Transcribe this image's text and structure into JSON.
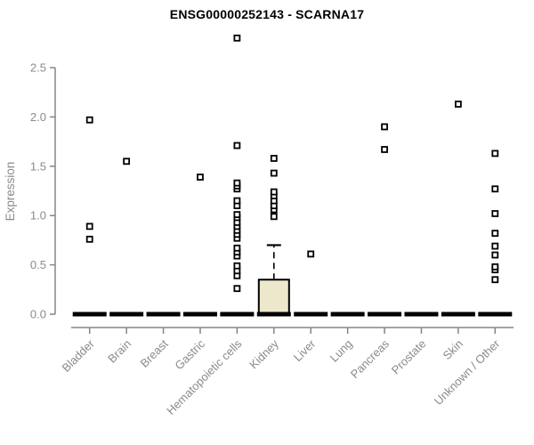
{
  "title": "ENSG00000252143 - SCARNA17",
  "chart_data": {
    "type": "boxplot",
    "title": "ENSG00000252143 - SCARNA17",
    "xlabel": "",
    "ylabel": "Expression",
    "ylim": [
      0,
      2.5
    ],
    "yticks": [
      0.0,
      0.5,
      1.0,
      1.5,
      2.0,
      2.5
    ],
    "grid": false,
    "legend": "none",
    "categories": [
      "Bladder",
      "Brain",
      "Breast",
      "Gastric",
      "Hematopoietic cells",
      "Kidney",
      "Liver",
      "Lung",
      "Pancreas",
      "Prostate",
      "Skin",
      "Unknown / Other"
    ],
    "boxes": [
      {
        "category": "Bladder",
        "median": 0,
        "q1": 0,
        "q3": 0,
        "whisker_low": 0,
        "whisker_high": 0,
        "outliers": [
          0.76,
          0.89,
          1.97
        ]
      },
      {
        "category": "Brain",
        "median": 0,
        "q1": 0,
        "q3": 0,
        "whisker_low": 0,
        "whisker_high": 0,
        "outliers": [
          1.55
        ]
      },
      {
        "category": "Breast",
        "median": 0,
        "q1": 0,
        "q3": 0,
        "whisker_low": 0,
        "whisker_high": 0,
        "outliers": []
      },
      {
        "category": "Gastric",
        "median": 0,
        "q1": 0,
        "q3": 0,
        "whisker_low": 0,
        "whisker_high": 0,
        "outliers": [
          1.39
        ]
      },
      {
        "category": "Hematopoietic cells",
        "median": 0,
        "q1": 0,
        "q3": 0,
        "whisker_low": 0,
        "whisker_high": 0,
        "outliers": [
          0.26,
          0.39,
          0.44,
          0.49,
          0.59,
          0.63,
          0.67,
          0.77,
          0.81,
          0.85,
          0.89,
          0.93,
          0.98,
          1.01,
          1.1,
          1.15,
          1.27,
          1.3,
          1.33,
          1.71,
          2.8
        ]
      },
      {
        "category": "Kidney",
        "median": 0,
        "q1": 0,
        "q3": 0.35,
        "whisker_low": 0,
        "whisker_high": 0.7,
        "outliers": [
          0.99,
          1.06,
          1.1,
          1.15,
          1.2,
          1.24,
          1.43,
          1.58
        ]
      },
      {
        "category": "Liver",
        "median": 0,
        "q1": 0,
        "q3": 0,
        "whisker_low": 0,
        "whisker_high": 0,
        "outliers": [
          0.61
        ]
      },
      {
        "category": "Lung",
        "median": 0,
        "q1": 0,
        "q3": 0,
        "whisker_low": 0,
        "whisker_high": 0,
        "outliers": []
      },
      {
        "category": "Pancreas",
        "median": 0,
        "q1": 0,
        "q3": 0,
        "whisker_low": 0,
        "whisker_high": 0,
        "outliers": [
          1.67,
          1.9
        ]
      },
      {
        "category": "Prostate",
        "median": 0,
        "q1": 0,
        "q3": 0,
        "whisker_low": 0,
        "whisker_high": 0,
        "outliers": []
      },
      {
        "category": "Skin",
        "median": 0,
        "q1": 0,
        "q3": 0,
        "whisker_low": 0,
        "whisker_high": 0,
        "outliers": [
          2.13
        ]
      },
      {
        "category": "Unknown / Other",
        "median": 0,
        "q1": 0,
        "q3": 0,
        "whisker_low": 0,
        "whisker_high": 0,
        "outliers": [
          0.35,
          0.45,
          0.48,
          0.6,
          0.69,
          0.82,
          1.02,
          1.27,
          1.63
        ]
      }
    ],
    "colors": {
      "box_fill": "#EDE8CB",
      "box_border": "#000000",
      "median": "#000000",
      "whisker": "#000000",
      "outlier_stroke": "#000000",
      "outlier_fill": "#ffffff",
      "axis_line": "#858585",
      "tick_label": "#8a8a8a",
      "title": "#000000"
    }
  }
}
